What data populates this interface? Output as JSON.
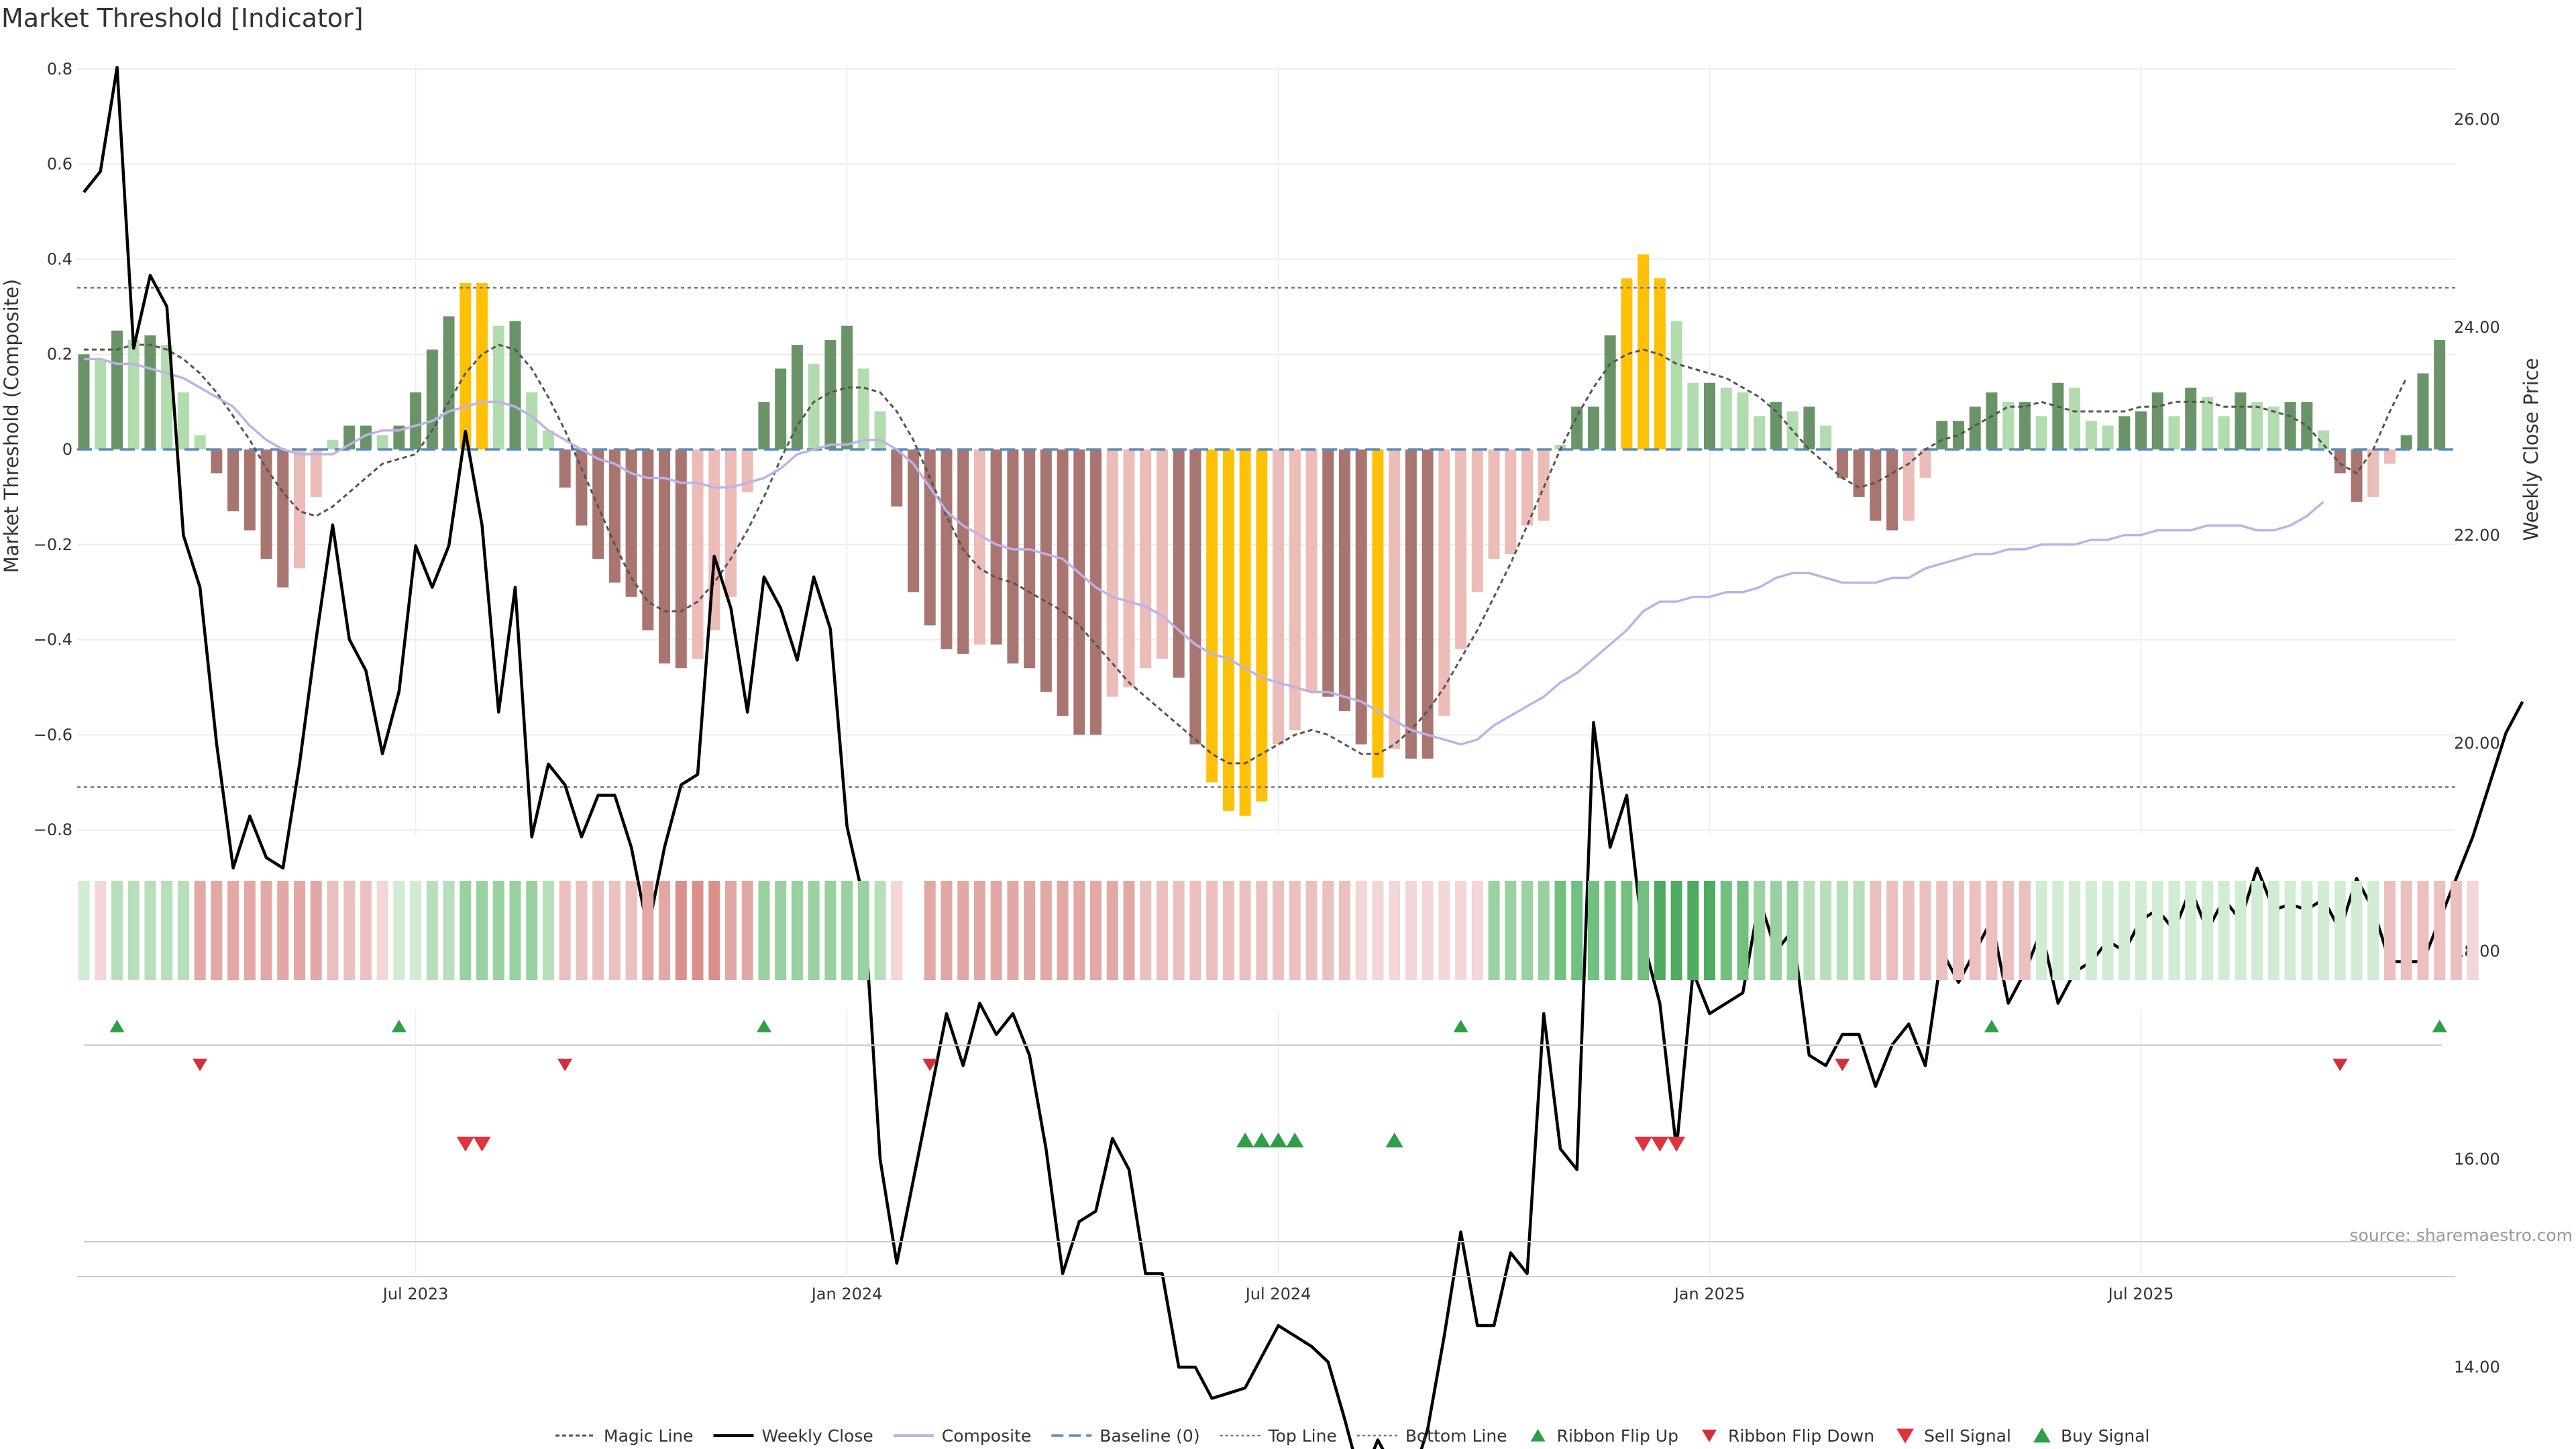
{
  "chart_data": {
    "type": "bar",
    "title": "Market Threshold [Indicator]",
    "ylabel_left": "Market Threshold (Composite)",
    "ylabel_right": "Weekly Close Price",
    "source": "source: sharemaestro.com",
    "ylim_left": [
      -0.82,
      0.8
    ],
    "ylim_right": [
      12.6,
      26.5
    ],
    "yticks_left": [
      {
        "v": 0.8,
        "label": "0.8"
      },
      {
        "v": 0.6,
        "label": "0.6"
      },
      {
        "v": 0.4,
        "label": "0.4"
      },
      {
        "v": 0.2,
        "label": "0.2"
      },
      {
        "v": 0,
        "label": "0"
      },
      {
        "v": -0.2,
        "label": "−0.2"
      },
      {
        "v": -0.4,
        "label": "−0.4"
      },
      {
        "v": -0.6,
        "label": "−0.6"
      },
      {
        "v": -0.8,
        "label": "−0.8"
      }
    ],
    "yticks_right": [
      {
        "v": 26,
        "label": "26.00"
      },
      {
        "v": 24,
        "label": "24.00"
      },
      {
        "v": 22,
        "label": "22.00"
      },
      {
        "v": 20,
        "label": "20.00"
      },
      {
        "v": 18,
        "label": "18.00"
      },
      {
        "v": 16,
        "label": "16.00"
      },
      {
        "v": 14,
        "label": "14.00"
      }
    ],
    "xticks": [
      {
        "week": 20,
        "label": "Jul 2023"
      },
      {
        "week": 46,
        "label": "Jan 2024"
      },
      {
        "week": 72,
        "label": "Jul 2024"
      },
      {
        "week": 98,
        "label": "Jan 2025"
      },
      {
        "week": 124,
        "label": "Jul 2025"
      }
    ],
    "top_line": 0.34,
    "bottom_line": -0.71,
    "composite": [
      0.19,
      0.19,
      0.18,
      0.18,
      0.17,
      0.16,
      0.15,
      0.13,
      0.11,
      0.09,
      0.05,
      0.02,
      0.0,
      -0.01,
      -0.01,
      -0.01,
      0.01,
      0.03,
      0.04,
      0.04,
      0.05,
      0.06,
      0.08,
      0.09,
      0.1,
      0.1,
      0.09,
      0.07,
      0.04,
      0.02,
      0.0,
      -0.02,
      -0.03,
      -0.05,
      -0.06,
      -0.06,
      -0.07,
      -0.07,
      -0.08,
      -0.08,
      -0.07,
      -0.06,
      -0.04,
      -0.01,
      0.0,
      0.01,
      0.01,
      0.02,
      0.02,
      0.0,
      -0.03,
      -0.08,
      -0.13,
      -0.16,
      -0.18,
      -0.2,
      -0.21,
      -0.21,
      -0.22,
      -0.23,
      -0.26,
      -0.29,
      -0.31,
      -0.32,
      -0.33,
      -0.35,
      -0.38,
      -0.41,
      -0.43,
      -0.44,
      -0.46,
      -0.48,
      -0.49,
      -0.5,
      -0.51,
      -0.51,
      -0.52,
      -0.53,
      -0.55,
      -0.57,
      -0.59,
      -0.6,
      -0.61,
      -0.62,
      -0.61,
      -0.58,
      -0.56,
      -0.54,
      -0.52,
      -0.49,
      -0.47,
      -0.44,
      -0.41,
      -0.38,
      -0.34,
      -0.32,
      -0.32,
      -0.31,
      -0.31,
      -0.3,
      -0.3,
      -0.29,
      -0.27,
      -0.26,
      -0.26,
      -0.27,
      -0.28,
      -0.28,
      -0.28,
      -0.27,
      -0.27,
      -0.25,
      -0.24,
      -0.23,
      -0.22,
      -0.22,
      -0.21,
      -0.21,
      -0.2,
      -0.2,
      -0.2,
      -0.19,
      -0.19,
      -0.18,
      -0.18,
      -0.17,
      -0.17,
      -0.17,
      -0.16,
      -0.16,
      -0.16,
      -0.17,
      -0.17,
      -0.16,
      -0.14,
      -0.11
    ],
    "magic_line": [
      0.21,
      0.21,
      0.21,
      0.22,
      0.22,
      0.21,
      0.19,
      0.16,
      0.12,
      0.07,
      0.02,
      -0.04,
      -0.09,
      -0.13,
      -0.14,
      -0.12,
      -0.09,
      -0.06,
      -0.03,
      -0.02,
      -0.01,
      0.04,
      0.1,
      0.16,
      0.2,
      0.22,
      0.21,
      0.17,
      0.11,
      0.04,
      -0.04,
      -0.12,
      -0.2,
      -0.27,
      -0.32,
      -0.34,
      -0.34,
      -0.32,
      -0.28,
      -0.23,
      -0.17,
      -0.1,
      -0.02,
      0.05,
      0.1,
      0.12,
      0.13,
      0.13,
      0.12,
      0.08,
      0.02,
      -0.06,
      -0.14,
      -0.21,
      -0.25,
      -0.27,
      -0.28,
      -0.3,
      -0.32,
      -0.34,
      -0.37,
      -0.41,
      -0.45,
      -0.49,
      -0.52,
      -0.55,
      -0.58,
      -0.61,
      -0.64,
      -0.66,
      -0.66,
      -0.64,
      -0.62,
      -0.6,
      -0.59,
      -0.6,
      -0.62,
      -0.64,
      -0.64,
      -0.62,
      -0.59,
      -0.55,
      -0.5,
      -0.44,
      -0.38,
      -0.31,
      -0.24,
      -0.16,
      -0.08,
      0.0,
      0.07,
      0.13,
      0.18,
      0.2,
      0.21,
      0.2,
      0.18,
      0.17,
      0.16,
      0.15,
      0.13,
      0.11,
      0.08,
      0.04,
      0.0,
      -0.03,
      -0.06,
      -0.08,
      -0.07,
      -0.05,
      -0.03,
      0.0,
      0.02,
      0.03,
      0.05,
      0.07,
      0.09,
      0.09,
      0.1,
      0.09,
      0.08,
      0.08,
      0.08,
      0.08,
      0.09,
      0.09,
      0.1,
      0.1,
      0.1,
      0.09,
      0.09,
      0.09,
      0.08,
      0.07,
      0.05,
      0.01,
      -0.03,
      -0.05,
      0.0,
      0.08,
      0.15
    ],
    "series": [
      {
        "name": "Weekly Close",
        "values": [
          25.3,
          25.5,
          26.5,
          23.8,
          24.5,
          24.2,
          22.0,
          21.5,
          20.0,
          18.8,
          19.3,
          18.9,
          18.8,
          19.8,
          21.0,
          22.1,
          21.0,
          20.7,
          19.9,
          20.5,
          21.9,
          21.5,
          21.9,
          23.0,
          22.1,
          20.3,
          21.5,
          19.1,
          19.8,
          19.6,
          19.1,
          19.5,
          19.5,
          19.0,
          18.2,
          19.0,
          19.6,
          19.7,
          21.8,
          21.3,
          20.3,
          21.6,
          21.3,
          20.8,
          21.6,
          21.1,
          19.2,
          18.5,
          16.0,
          15.0,
          15.8,
          16.6,
          17.4,
          16.9,
          17.5,
          17.2,
          17.4,
          17.0,
          16.1,
          14.9,
          15.4,
          15.5,
          16.2,
          15.9,
          14.9,
          14.9,
          14.0,
          14.0,
          13.7,
          13.75,
          13.8,
          14.1,
          14.4,
          14.3,
          14.2,
          14.05,
          13.5,
          12.9,
          13.3,
          13.0,
          12.9,
          13.4,
          14.3,
          15.3,
          14.4,
          14.4,
          15.1,
          14.9,
          17.4,
          16.1,
          15.9,
          20.2,
          19.0,
          19.5,
          18.1,
          17.5,
          16.1,
          17.8,
          17.4,
          17.5,
          17.6,
          18.5,
          18.0,
          18.2,
          17.0,
          16.9,
          17.2,
          17.2,
          16.7,
          17.1,
          17.3,
          16.9,
          18.0,
          17.7,
          18.0,
          18.3,
          17.5,
          17.8,
          18.2,
          17.5,
          17.8,
          17.9,
          18.1,
          18.0,
          18.3,
          18.4,
          18.2,
          18.6,
          18.2,
          18.5,
          18.3,
          18.8,
          18.4,
          18.45,
          18.4,
          18.5,
          18.2,
          18.7,
          18.4,
          17.9,
          17.9,
          17.9,
          18.3,
          18.7,
          19.1,
          19.6,
          20.1,
          20.4
        ]
      }
    ],
    "bar_values": [
      0.2,
      0.19,
      0.25,
      0.23,
      0.24,
      0.22,
      0.12,
      0.03,
      -0.05,
      -0.13,
      -0.17,
      -0.23,
      -0.29,
      -0.25,
      -0.1,
      0.02,
      0.05,
      0.05,
      0.03,
      0.05,
      0.12,
      0.21,
      0.28,
      0.35,
      0.35,
      0.26,
      0.27,
      0.12,
      0.04,
      -0.08,
      -0.16,
      -0.23,
      -0.28,
      -0.31,
      -0.38,
      -0.45,
      -0.46,
      -0.44,
      -0.38,
      -0.31,
      -0.09,
      0.1,
      0.17,
      0.22,
      0.18,
      0.23,
      0.26,
      0.17,
      0.08,
      -0.12,
      -0.3,
      -0.37,
      -0.42,
      -0.43,
      -0.41,
      -0.41,
      -0.45,
      -0.46,
      -0.51,
      -0.56,
      -0.6,
      -0.6,
      -0.52,
      -0.5,
      -0.46,
      -0.44,
      -0.48,
      -0.62,
      -0.7,
      -0.76,
      -0.77,
      -0.74,
      -0.62,
      -0.59,
      -0.51,
      -0.52,
      -0.55,
      -0.62,
      -0.69,
      -0.63,
      -0.65,
      -0.65,
      -0.56,
      -0.42,
      -0.3,
      -0.23,
      -0.22,
      -0.16,
      -0.15,
      0.01,
      0.09,
      0.09,
      0.24,
      0.36,
      0.41,
      0.36,
      0.27,
      0.14,
      0.14,
      0.13,
      0.12,
      0.07,
      0.1,
      0.08,
      0.09,
      0.05,
      -0.06,
      -0.1,
      -0.15,
      -0.17,
      -0.15,
      -0.06,
      0.06,
      0.06,
      0.09,
      0.12,
      0.1,
      0.1,
      0.07,
      0.14,
      0.13,
      0.06,
      0.05,
      0.07,
      0.08,
      0.12,
      0.07,
      0.13,
      0.11,
      0.07,
      0.12,
      0.1,
      0.09,
      0.1,
      0.1,
      0.04,
      -0.05,
      -0.11,
      -0.1,
      -0.03,
      0.03,
      0.16,
      0.23
    ],
    "bar_colors": {
      "dark_green": "#6a9468",
      "light_green": "#b2dbae",
      "dark_red": "#a87570",
      "light_red": "#ecbcb8",
      "yellow": "#ffc107"
    },
    "ribbon_values": [
      1,
      -1,
      2,
      2,
      2,
      2,
      2,
      -3,
      -3,
      -3,
      -3,
      -3,
      -3,
      -3,
      -3,
      -2,
      -2,
      -2,
      -1,
      1,
      1,
      2,
      2,
      3,
      3,
      3,
      3,
      3,
      2,
      -2,
      -2,
      -2,
      -2,
      -2,
      -3,
      -3,
      -4,
      -4,
      -4,
      -3,
      -3,
      3,
      3,
      3,
      3,
      3,
      3,
      3,
      2,
      -1,
      0,
      -3,
      -3,
      -3,
      -3,
      -3,
      -3,
      -3,
      -3,
      -3,
      -3,
      -3,
      -3,
      -3,
      -2,
      -2,
      -2,
      -2,
      -2,
      -2,
      -2,
      -2,
      -2,
      -2,
      -2,
      -2,
      -2,
      -1,
      -1,
      -1,
      -1,
      -1,
      -1,
      -1,
      -1,
      3,
      3,
      3,
      3,
      4,
      4,
      4,
      4,
      4,
      4,
      5,
      5,
      5,
      5,
      4,
      4,
      3,
      3,
      3,
      2,
      2,
      2,
      2,
      -2,
      -2,
      -2,
      -2,
      -2,
      -2,
      -2,
      -2,
      -2,
      -2,
      1,
      1,
      1,
      1,
      1,
      1,
      1,
      1,
      1,
      1,
      1,
      1,
      1,
      1,
      1,
      1,
      1,
      1,
      1,
      1,
      1,
      -2,
      -2,
      -2,
      -2,
      -2,
      -1
    ],
    "ribbon_flip_up_weeks": [
      2,
      19,
      41,
      83,
      115,
      142
    ],
    "ribbon_flip_down_weeks": [
      7,
      29,
      51,
      106,
      136
    ],
    "sell_signal_weeks": [
      23,
      24,
      94,
      95,
      96
    ],
    "buy_signal_weeks": [
      70,
      71,
      72,
      73,
      79
    ],
    "colors": {
      "magic": "#555555",
      "close": "#000000",
      "composite": "#bdb2e8",
      "baseline": "#5b8db8",
      "refline": "#777777",
      "flip_up": "#2e9e48",
      "flip_down": "#d0303a",
      "sell": "#e0323f",
      "buy": "#2e9e48"
    },
    "legend": [
      {
        "kind": "magic",
        "label": "Magic Line"
      },
      {
        "kind": "close",
        "label": "Weekly Close"
      },
      {
        "kind": "composite",
        "label": "Composite"
      },
      {
        "kind": "baseline",
        "label": "Baseline (0)"
      },
      {
        "kind": "top",
        "label": "Top Line"
      },
      {
        "kind": "bottom",
        "label": "Bottom Line"
      },
      {
        "kind": "flip_up",
        "label": "Ribbon Flip Up"
      },
      {
        "kind": "flip_down",
        "label": "Ribbon Flip Down"
      },
      {
        "kind": "sell",
        "label": "Sell Signal"
      },
      {
        "kind": "buy",
        "label": "Buy Signal"
      }
    ]
  }
}
